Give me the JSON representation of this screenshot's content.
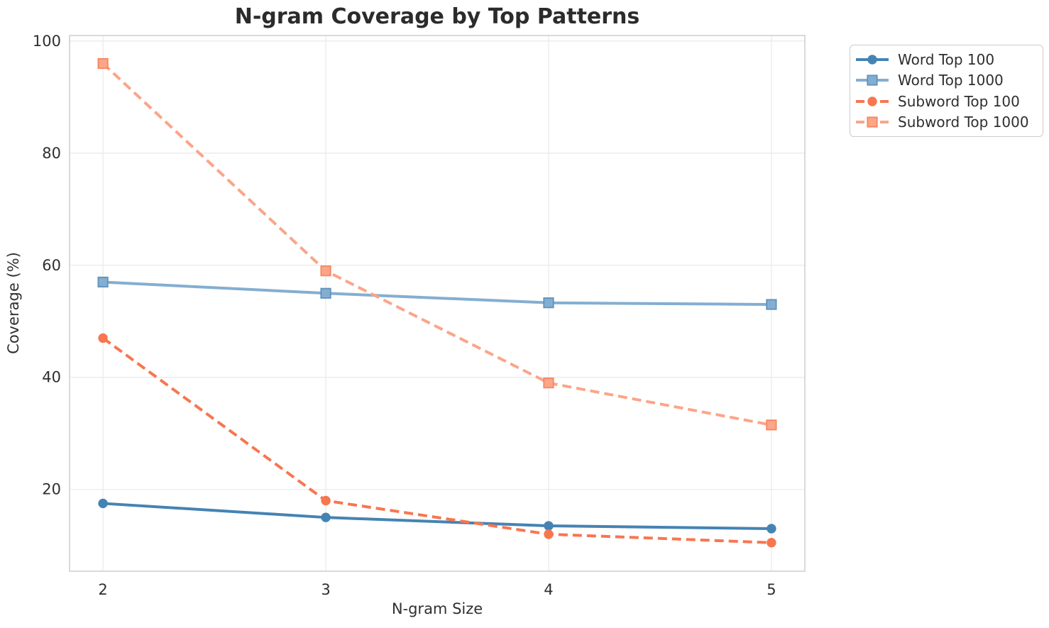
{
  "chart_data": {
    "type": "line",
    "title": "N-gram Coverage by Top Patterns",
    "xlabel": "N-gram Size",
    "ylabel": "Coverage (%)",
    "x": [
      2,
      3,
      4,
      5
    ],
    "series": [
      {
        "name": "Word Top 100",
        "values": [
          17.5,
          15.0,
          13.5,
          13.0
        ],
        "color": "#4583B3",
        "edge": "#4583B3",
        "marker": "circle",
        "linestyle": "solid"
      },
      {
        "name": "Word Top 1000",
        "values": [
          57.0,
          55.0,
          53.3,
          53.0
        ],
        "color": "#84AED1",
        "edge": "#5D92BE",
        "marker": "square",
        "linestyle": "solid"
      },
      {
        "name": "Subword Top 100",
        "values": [
          47.0,
          18.0,
          12.0,
          10.5
        ],
        "color": "#F7764F",
        "edge": "#F7764F",
        "marker": "circle",
        "linestyle": "dashed"
      },
      {
        "name": "Subword Top 1000",
        "values": [
          96.0,
          59.0,
          39.0,
          31.5
        ],
        "color": "#FBA589",
        "edge": "#F8865F",
        "marker": "square",
        "linestyle": "dashed"
      }
    ],
    "xticks": [
      2,
      3,
      4,
      5
    ],
    "yticks": [
      20,
      40,
      60,
      80,
      100
    ],
    "xlim": [
      1.85,
      5.15
    ],
    "ylim": [
      5.4,
      101.0
    ],
    "grid": true,
    "grid_color": "#e9e9e9",
    "spine_color": "#cdcdcd",
    "text_color": "#2f2f2f",
    "legend_position": "outside-top-right"
  }
}
